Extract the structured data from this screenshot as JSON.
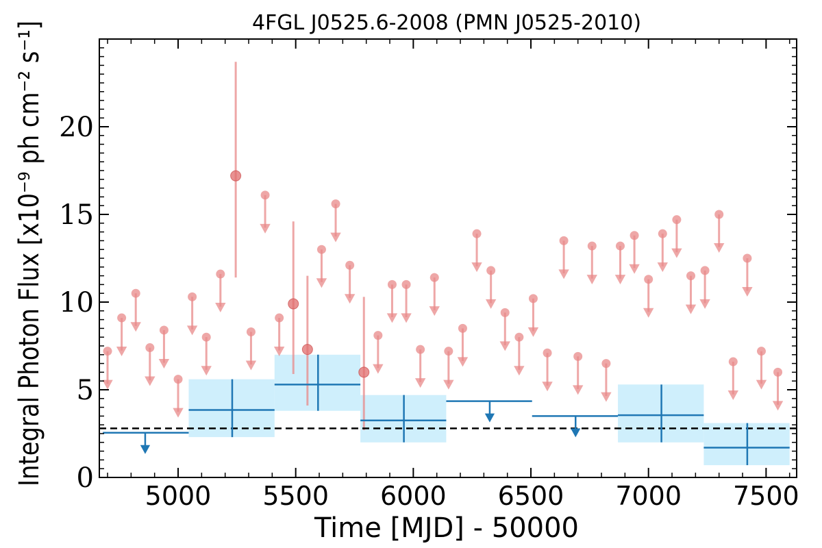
{
  "chart_data": {
    "type": "scatter",
    "title": "4FGL J0525.6-2008 (PMN J0525-2010)",
    "xlabel": "Time [MJD] - 50000",
    "ylabel": "Integral Photon Flux [x10⁻⁹ ph cm⁻² s⁻¹]",
    "xlim": [
      4665,
      7630
    ],
    "ylim": [
      0,
      25
    ],
    "xticks": [
      5000,
      5500,
      6000,
      6500,
      7000,
      7500
    ],
    "xtick_labels": [
      "5000",
      "5500",
      "6000",
      "6500",
      "7000",
      "7500"
    ],
    "yticks": [
      0,
      5,
      10,
      15,
      20
    ],
    "ytick_labels": [
      "0",
      "5",
      "10",
      "15",
      "20"
    ],
    "average_flux": 2.8,
    "series": [
      {
        "type": "monthly",
        "color": "#e88a8a",
        "upper_limits": [
          {
            "x": 4700,
            "y": 7.2
          },
          {
            "x": 4760,
            "y": 9.1
          },
          {
            "x": 4820,
            "y": 10.5
          },
          {
            "x": 4880,
            "y": 7.4
          },
          {
            "x": 4940,
            "y": 8.4
          },
          {
            "x": 5000,
            "y": 5.6
          },
          {
            "x": 5060,
            "y": 10.3
          },
          {
            "x": 5120,
            "y": 8.0
          },
          {
            "x": 5180,
            "y": 11.6
          },
          {
            "x": 5310,
            "y": 8.3
          },
          {
            "x": 5370,
            "y": 16.1
          },
          {
            "x": 5430,
            "y": 9.1
          },
          {
            "x": 5610,
            "y": 13.0
          },
          {
            "x": 5670,
            "y": 15.6
          },
          {
            "x": 5730,
            "y": 12.1
          },
          {
            "x": 5850,
            "y": 8.1
          },
          {
            "x": 5910,
            "y": 11.0
          },
          {
            "x": 5970,
            "y": 11.0
          },
          {
            "x": 6030,
            "y": 7.3
          },
          {
            "x": 6090,
            "y": 11.4
          },
          {
            "x": 6150,
            "y": 7.2
          },
          {
            "x": 6210,
            "y": 8.5
          },
          {
            "x": 6270,
            "y": 13.9
          },
          {
            "x": 6330,
            "y": 11.8
          },
          {
            "x": 6390,
            "y": 9.4
          },
          {
            "x": 6450,
            "y": 8.0
          },
          {
            "x": 6510,
            "y": 10.2
          },
          {
            "x": 6570,
            "y": 7.1
          },
          {
            "x": 6640,
            "y": 13.5
          },
          {
            "x": 6700,
            "y": 6.9
          },
          {
            "x": 6760,
            "y": 13.2
          },
          {
            "x": 6820,
            "y": 6.5
          },
          {
            "x": 6880,
            "y": 13.2
          },
          {
            "x": 6940,
            "y": 13.8
          },
          {
            "x": 7000,
            "y": 11.3
          },
          {
            "x": 7060,
            "y": 13.9
          },
          {
            "x": 7120,
            "y": 14.7
          },
          {
            "x": 7180,
            "y": 11.5
          },
          {
            "x": 7240,
            "y": 11.8
          },
          {
            "x": 7300,
            "y": 15.0
          },
          {
            "x": 7360,
            "y": 6.6
          },
          {
            "x": 7420,
            "y": 12.5
          },
          {
            "x": 7480,
            "y": 7.2
          },
          {
            "x": 7550,
            "y": 6.0
          }
        ],
        "detections": [
          {
            "x": 5245,
            "y": 17.2,
            "ylo": 11.4,
            "yhi": 23.7
          },
          {
            "x": 5490,
            "y": 9.9,
            "ylo": 5.9,
            "yhi": 14.6
          },
          {
            "x": 5550,
            "y": 7.3,
            "ylo": 4.1,
            "yhi": 11.5
          },
          {
            "x": 5790,
            "y": 6.0,
            "ylo": 2.7,
            "yhi": 10.3
          }
        ]
      },
      {
        "type": "yearly",
        "color": "#1f77b4",
        "band_color": "#cfeffc",
        "detections": [
          {
            "x": 5230,
            "xlo": 5045,
            "xhi": 5410,
            "y": 3.85,
            "ylo": 2.3,
            "yhi": 5.6
          },
          {
            "x": 5595,
            "xlo": 5410,
            "xhi": 5775,
            "y": 5.3,
            "ylo": 3.8,
            "yhi": 7.0
          },
          {
            "x": 5960,
            "xlo": 5775,
            "xhi": 6140,
            "y": 3.25,
            "ylo": 2.0,
            "yhi": 4.7
          },
          {
            "x": 7055,
            "xlo": 6870,
            "xhi": 7235,
            "y": 3.55,
            "ylo": 2.0,
            "yhi": 5.3
          },
          {
            "x": 7420,
            "xlo": 7235,
            "xhi": 7600,
            "y": 1.7,
            "ylo": 0.7,
            "yhi": 3.1
          }
        ],
        "upper_limits": [
          {
            "x": 4860,
            "xlo": 4680,
            "xhi": 5045,
            "y": 2.55
          },
          {
            "x": 6325,
            "xlo": 6140,
            "xhi": 6505,
            "y": 4.35
          },
          {
            "x": 6690,
            "xlo": 6505,
            "xhi": 6870,
            "y": 3.5
          }
        ]
      }
    ]
  }
}
